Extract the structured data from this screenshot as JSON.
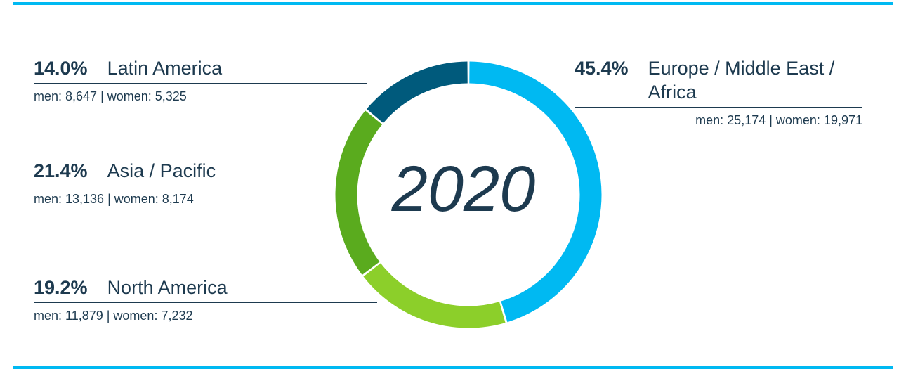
{
  "chart_data": {
    "type": "donut",
    "center_label": "2020",
    "categories": [
      "Europe / Middle East / Africa",
      "North America",
      "Asia / Pacific",
      "Latin America"
    ],
    "values": [
      45.4,
      19.2,
      21.4,
      14.0
    ],
    "value_labels": [
      "45.4%",
      "19.2%",
      "21.4%",
      "14.0%"
    ],
    "details": [
      "men: 25,174 | women: 19,971",
      "men: 11,879 | women: 7,232",
      "men: 13,136 | women: 8,174",
      "men: 8,647 | women: 5,325"
    ],
    "colors": [
      "#00b9f2",
      "#8ccf2a",
      "#5aab1e",
      "#005a7c"
    ]
  }
}
